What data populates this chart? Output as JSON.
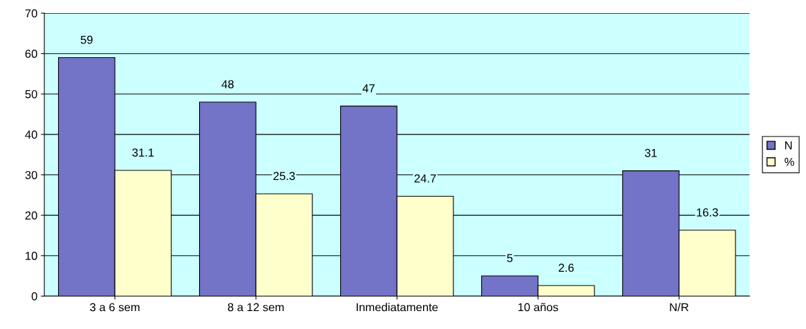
{
  "chart_data": {
    "type": "bar",
    "categories": [
      "3 a 6 sem",
      "8 a 12 sem",
      "Inmediatamente",
      "10 años",
      "N/R"
    ],
    "series": [
      {
        "name": "N",
        "color": "#7373c8",
        "values": [
          59,
          48,
          47,
          5,
          31
        ]
      },
      {
        "name": "%",
        "color": "#ffffcc",
        "values": [
          31.1,
          25.3,
          24.7,
          2.6,
          16.3
        ]
      }
    ],
    "ylim": [
      0,
      70
    ],
    "yticks": [
      0,
      10,
      20,
      30,
      40,
      50,
      60,
      70
    ],
    "grid": "y",
    "legend": "right",
    "data_labels": true
  }
}
